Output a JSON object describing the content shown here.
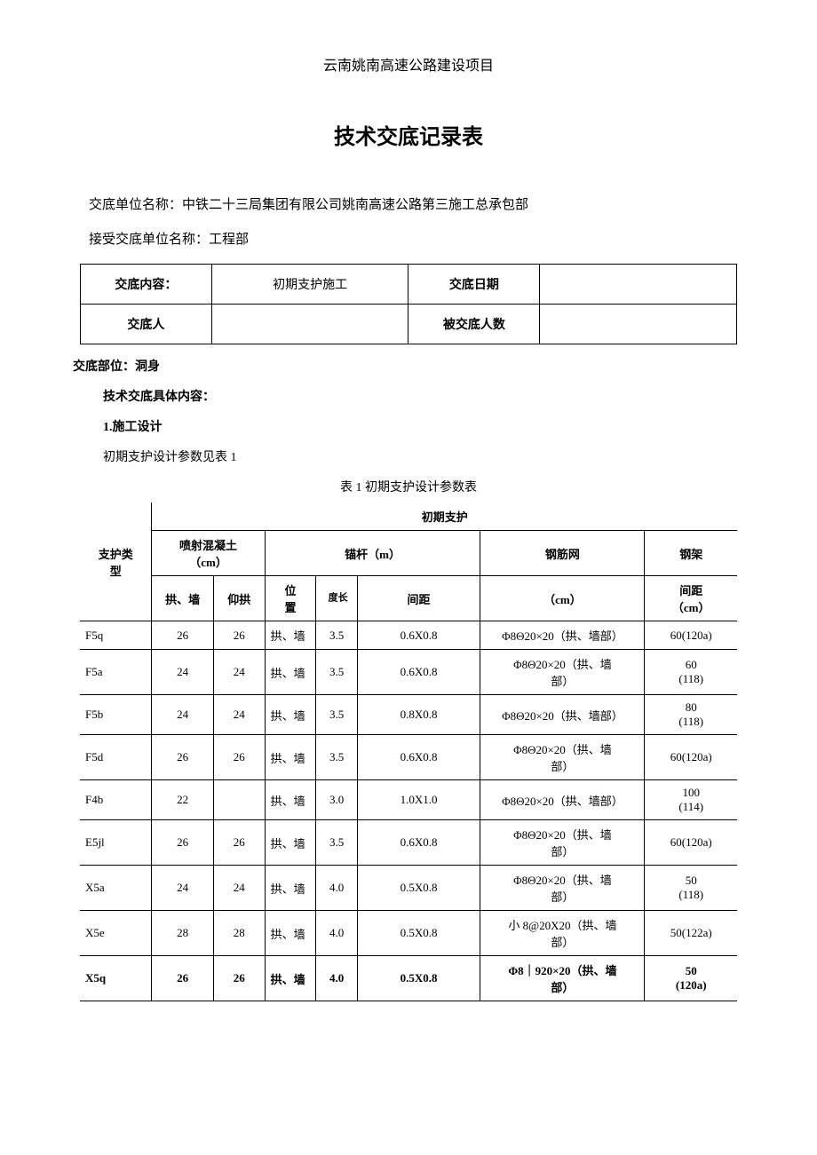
{
  "header": {
    "project_name": "云南姚南高速公路建设项目",
    "doc_title": "技术交底记录表",
    "unit_name_label": "交底单位名称：",
    "unit_name_value": "中铁二十三局集团有限公司姚南高速公路第三施工总承包部",
    "receiving_unit_label": "接受交底单位名称：",
    "receiving_unit_value": "工程部"
  },
  "header_table": {
    "content_label": "交底内容：",
    "content_value": "初期支护施工",
    "date_label": "交底日期",
    "date_value": "",
    "person_label": "交底人",
    "person_value": "",
    "count_label": "被交底人数",
    "count_value": ""
  },
  "body": {
    "location_label": "交底部位：",
    "location_value": "洞身",
    "content_header": "技术交底具体内容：",
    "section1_title": "1.施工设计",
    "section1_text": "初期支护设计参数见表 1",
    "table_caption": "表 1 初期支护设计参数表"
  },
  "params_table": {
    "headers": {
      "support_type": "支护类\n型",
      "initial_support": "初期支护",
      "spray_concrete": "喷射混凝土\n（cm）",
      "anchor": "锚杆（m）",
      "rebar_net": "钢筋网",
      "steel_frame": "钢架",
      "spacing": "间距",
      "arch_wall": "拱、墙",
      "invert_arch": "仰拱",
      "position": "位\n置",
      "length": "长\n度",
      "spacing2": "间距",
      "cm": "（cm）",
      "cm2": "（cm）"
    },
    "rows": [
      {
        "type": "F5q",
        "arch_wall": "26",
        "invert": "26",
        "pos": "拱、墙",
        "len": "3.5",
        "spacing": "0.6X0.8",
        "rebar": "Φ8Θ20×20（拱、墙部）",
        "frame": "60(120a)"
      },
      {
        "type": "F5a",
        "arch_wall": "24",
        "invert": "24",
        "pos": "拱、墙",
        "len": "3.5",
        "spacing": "0.6X0.8",
        "rebar": "Φ8Θ20×20（拱、墙\n部）",
        "frame": "60\n(118)"
      },
      {
        "type": "F5b",
        "arch_wall": "24",
        "invert": "24",
        "pos": "拱、墙",
        "len": "3.5",
        "spacing": "0.8X0.8",
        "rebar": "Φ8Θ20×20（拱、墙部）",
        "frame": "80\n(118)"
      },
      {
        "type": "F5d",
        "arch_wall": "26",
        "invert": "26",
        "pos": "拱、墙",
        "len": "3.5",
        "spacing": "0.6X0.8",
        "rebar": "Φ8Θ20×20（拱、墙\n部）",
        "frame": "60(120a)"
      },
      {
        "type": "F4b",
        "arch_wall": "22",
        "invert": "",
        "pos": "拱、墙",
        "len": "3.0",
        "spacing": "1.0X1.0",
        "rebar": "Φ8Θ20×20（拱、墙部）",
        "frame": "100\n(114)"
      },
      {
        "type": "E5jl",
        "arch_wall": "26",
        "invert": "26",
        "pos": "拱、墙",
        "len": "3.5",
        "spacing": "0.6X0.8",
        "rebar": "Φ8Θ20×20（拱、墙\n部）",
        "frame": "60(120a)"
      },
      {
        "type": "X5a",
        "arch_wall": "24",
        "invert": "24",
        "pos": "拱、墙",
        "len": "4.0",
        "spacing": "0.5X0.8",
        "rebar": "Φ8Θ20×20（拱、墙\n部）",
        "frame": "50\n(118)"
      },
      {
        "type": "X5e",
        "arch_wall": "28",
        "invert": "28",
        "pos": "拱、墙",
        "len": "4.0",
        "spacing": "0.5X0.8",
        "rebar": "小 8@20X20（拱、墙\n部）",
        "frame": "50(122a)"
      },
      {
        "type": "X5q",
        "arch_wall": "26",
        "invert": "26",
        "pos": "拱、墙",
        "len": "4.0",
        "spacing": "0.5X0.8",
        "rebar": "Φ8｜920×20（拱、墙\n部）",
        "frame": "50\n(120a)",
        "bold": true
      }
    ],
    "col_widths": [
      "70",
      "60",
      "50",
      "50",
      "40",
      "120",
      "160",
      "90"
    ]
  },
  "colors": {
    "text": "#000000",
    "background": "#ffffff",
    "border": "#000000"
  }
}
